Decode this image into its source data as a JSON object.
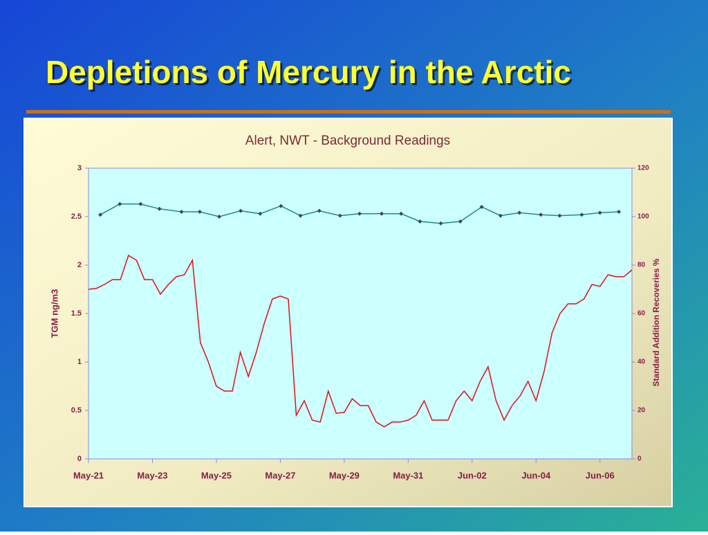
{
  "slide_title": "Depletions of Mercury in the Arctic",
  "chart_data": {
    "type": "line",
    "title": "Alert, NWT - Background Readings",
    "ylabel": "TGM  ng/m3",
    "y2label": "Standard Addition Recoveries  %",
    "xlim": [
      0,
      17
    ],
    "xticks": [
      {
        "value": 0,
        "label": "May-21"
      },
      {
        "value": 2,
        "label": "May-23"
      },
      {
        "value": 4,
        "label": "May-25"
      },
      {
        "value": 6,
        "label": "May-27"
      },
      {
        "value": 8,
        "label": "May-29"
      },
      {
        "value": 10,
        "label": "May-31"
      },
      {
        "value": 12,
        "label": "Jun-02"
      },
      {
        "value": 14,
        "label": "Jun-04"
      },
      {
        "value": 16,
        "label": "Jun-06"
      }
    ],
    "ylim": [
      0,
      3
    ],
    "yticks": [
      0,
      0.5,
      1,
      1.5,
      2,
      2.5,
      3
    ],
    "y2lim": [
      0,
      120
    ],
    "y2ticks": [
      0,
      20,
      40,
      60,
      80,
      100,
      120
    ],
    "series": [
      {
        "color": "#e01010",
        "x": [
          0,
          0.25,
          0.5,
          0.75,
          1,
          1.25,
          1.5,
          1.75,
          2,
          2.25,
          2.5,
          2.75,
          3,
          3.25,
          3.5,
          3.75,
          4,
          4.25,
          4.5,
          4.75,
          5,
          5.25,
          5.5,
          5.75,
          6,
          6.25,
          6.5,
          6.75,
          7,
          7.25,
          7.5,
          7.75,
          8,
          8.25,
          8.5,
          8.75,
          9,
          9.25,
          9.5,
          9.75,
          10,
          10.25,
          10.5,
          10.75,
          11,
          11.25,
          11.5,
          11.75,
          12,
          12.25,
          12.5,
          12.75,
          13,
          13.25,
          13.5,
          13.75,
          14,
          14.25,
          14.5,
          14.75,
          15,
          15.25,
          15.5,
          15.75,
          16,
          16.25,
          16.5,
          16.75,
          17
        ],
        "values": [
          1.75,
          1.76,
          1.8,
          1.85,
          1.85,
          2.1,
          2.05,
          1.85,
          1.85,
          1.7,
          1.8,
          1.88,
          1.9,
          2.05,
          1.2,
          1.0,
          0.75,
          0.7,
          0.7,
          1.1,
          0.85,
          1.1,
          1.4,
          1.65,
          1.68,
          1.65,
          0.45,
          0.6,
          0.4,
          0.38,
          0.7,
          0.47,
          0.48,
          0.62,
          0.55,
          0.55,
          0.38,
          0.33,
          0.38,
          0.38,
          0.4,
          0.45,
          0.6,
          0.4,
          0.4,
          0.4,
          0.6,
          0.7,
          0.6,
          0.8,
          0.95,
          0.6,
          0.4,
          0.55,
          0.65,
          0.8,
          0.6,
          0.9,
          1.3,
          1.5,
          1.6,
          1.6,
          1.65,
          1.8,
          1.78,
          1.9,
          1.88,
          1.88,
          1.95
        ]
      },
      {
        "color": "#1e8a8a",
        "marker_color": "#3a4a4a",
        "axis": "y2",
        "x": [
          0.37,
          0.98,
          1.63,
          2.22,
          2.91,
          3.48,
          4.09,
          4.76,
          5.37,
          6.02,
          6.63,
          7.22,
          7.87,
          8.48,
          9.17,
          9.78,
          10.37,
          11.02,
          11.63,
          12.3,
          12.89,
          13.48,
          14.15,
          14.74,
          15.43,
          16.0,
          16.59
        ],
        "values": [
          100.8,
          105.2,
          105.2,
          103.2,
          102,
          102,
          100,
          102.4,
          101.2,
          104.4,
          100.4,
          102.4,
          100.4,
          101.2,
          101.2,
          101.2,
          98,
          97.2,
          98,
          104,
          100.4,
          101.6,
          100.8,
          100.4,
          100.8,
          101.6,
          102
        ]
      }
    ]
  }
}
